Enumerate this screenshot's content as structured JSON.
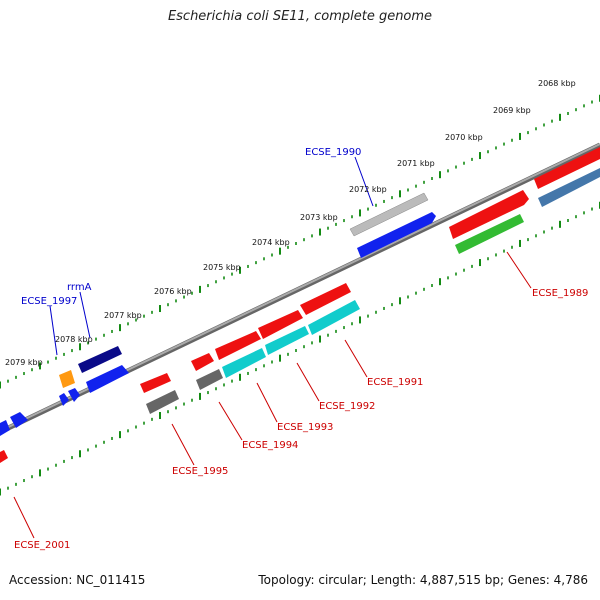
{
  "title": "Escherichia coli SE11, complete genome",
  "footer": {
    "accession": "Accession: NC_011415",
    "summary": "Topology: circular; Length: 4,887,515 bp; Genes: 4,786"
  },
  "ticks": [
    "2068 kbp",
    "2069 kbp",
    "2070 kbp",
    "2071 kbp",
    "2072 kbp",
    "2073 kbp",
    "2074 kbp",
    "2075 kbp",
    "2076 kbp",
    "2077 kbp",
    "2078 kbp",
    "2079 kbp"
  ],
  "labels": {
    "ECSE_1990": "ECSE_1990",
    "rrmA": "rrmA",
    "ECSE_1997": "ECSE_1997",
    "ECSE_1989": "ECSE_1989",
    "ECSE_1991": "ECSE_1991",
    "ECSE_1992": "ECSE_1992",
    "ECSE_1993": "ECSE_1993",
    "ECSE_1994": "ECSE_1994",
    "ECSE_1995": "ECSE_1995",
    "ECSE_2001": "ECSE_2001"
  },
  "colors": {
    "forward_label": "#0000cc",
    "reverse_label": "#cc0000",
    "backbone": "#888888",
    "tick": "#138a13",
    "red": "#ee1111",
    "blue": "#1122ee",
    "navy": "#0a0a88",
    "cyan": "#11cccc",
    "green": "#33bb33",
    "steel": "#4477aa",
    "grey": "#666666",
    "silver": "#bbbbbb",
    "orange": "#ff9911"
  }
}
